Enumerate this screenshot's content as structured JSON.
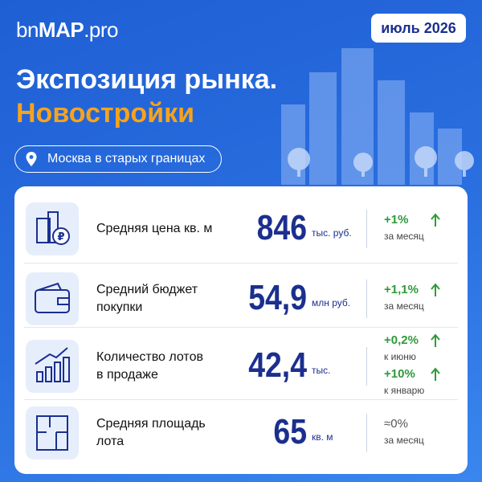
{
  "header": {
    "logo_parts": [
      "bn",
      "MAP",
      ".pro"
    ],
    "date": "июль 2026"
  },
  "title": {
    "line1": "Экспозиция рынка.",
    "line2": "Новостройки"
  },
  "location": "Москва в старых границах",
  "rows": [
    {
      "label": [
        "Средняя цена кв. м"
      ],
      "value": "846",
      "unit": "тыс. руб.",
      "changes": [
        {
          "value": "+1%",
          "period": "за месяц"
        }
      ]
    },
    {
      "label": [
        "Средний бюджет",
        "покупки"
      ],
      "value": "54,9",
      "unit": "млн руб.",
      "changes": [
        {
          "value": "+1,1%",
          "period": "за месяц"
        }
      ]
    },
    {
      "label": [
        "Количество лотов",
        "в продаже"
      ],
      "value": "42,4",
      "unit": "тыс.",
      "changes": [
        {
          "value": "+0,2%",
          "period": "к июню"
        },
        {
          "value": "+10%",
          "period": "к январю"
        }
      ]
    },
    {
      "label": [
        "Средняя площадь",
        "лота"
      ],
      "value": "65",
      "unit": "кв. м",
      "changes": [
        {
          "value": "≈0%",
          "period": "за месяц"
        }
      ]
    }
  ]
}
